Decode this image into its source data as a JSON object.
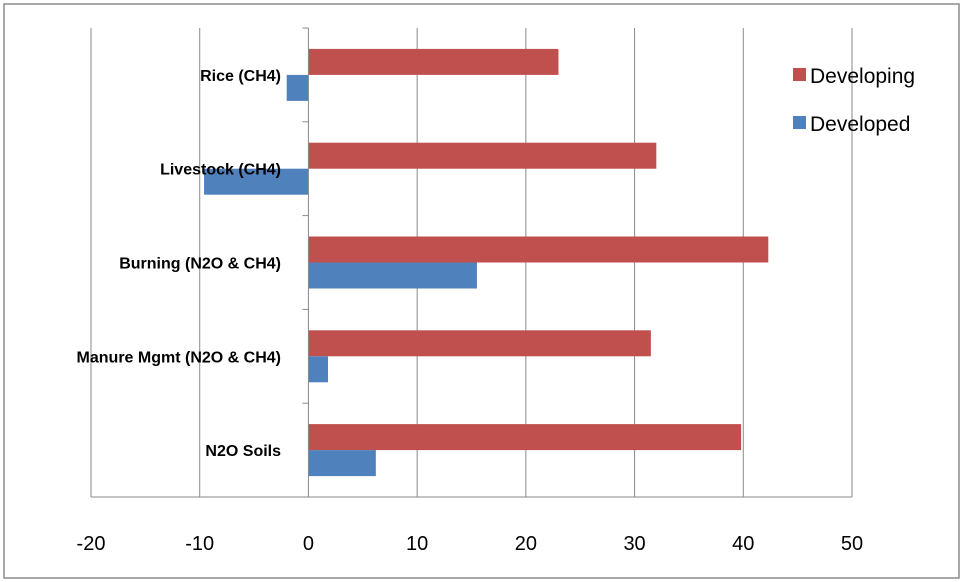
{
  "chart_data": {
    "type": "bar",
    "orientation": "horizontal",
    "categories": [
      "Rice (CH4)",
      "Livestock (CH4)",
      "Burning (N2O  & CH4)",
      "Manure Mgmt (N2O  & CH4)",
      "N2O Soils"
    ],
    "series": [
      {
        "name": "Developing",
        "color": "#c0504d",
        "values": [
          23,
          32,
          42.3,
          31.5,
          39.8
        ]
      },
      {
        "name": "Developed",
        "color": "#4f81bd",
        "values": [
          -2,
          -9.6,
          15.5,
          1.8,
          6.2
        ]
      }
    ],
    "xlim": [
      -20,
      50
    ],
    "x_ticks": [
      "-20",
      "-10",
      "0",
      "10",
      "20",
      "30",
      "40",
      "50"
    ],
    "grid": "vertical",
    "legend_position": "top-right",
    "title": "",
    "xlabel": "",
    "ylabel": ""
  }
}
